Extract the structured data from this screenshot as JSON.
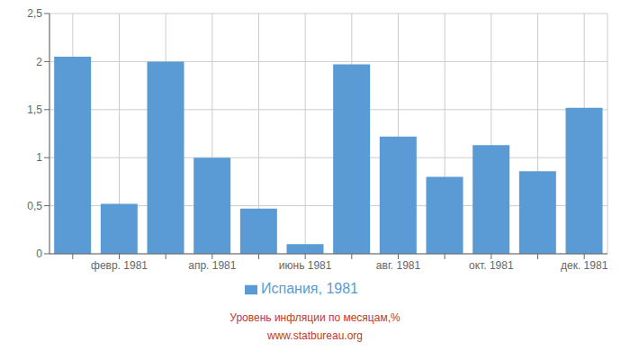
{
  "chart_data": {
    "type": "bar",
    "categories": [
      null,
      "февр. 1981",
      null,
      "апр. 1981",
      null,
      "июнь 1981",
      null,
      "авг. 1981",
      null,
      "окт. 1981",
      null,
      "дек. 1981"
    ],
    "series": [
      {
        "name": "Испания, 1981",
        "color": "#5B9BD5",
        "values": [
          2.05,
          0.52,
          2.0,
          1.0,
          0.47,
          0.1,
          1.97,
          1.22,
          0.8,
          1.13,
          0.86,
          1.52
        ]
      }
    ],
    "ylim": [
      0,
      2.5
    ],
    "yticks": [
      0,
      {
        "value": 0.5,
        "label": "0,5"
      },
      1,
      {
        "value": 1.5,
        "label": "1,5"
      },
      2,
      {
        "value": 2.5,
        "label": "2,5"
      }
    ],
    "grid": true,
    "legend": "bottom",
    "annotations": [
      {
        "text": "Уровень инфляции по месяцам,%",
        "color": "#C0392B"
      },
      {
        "text": "www.statbureau.org",
        "color": "#C0392B"
      }
    ]
  }
}
